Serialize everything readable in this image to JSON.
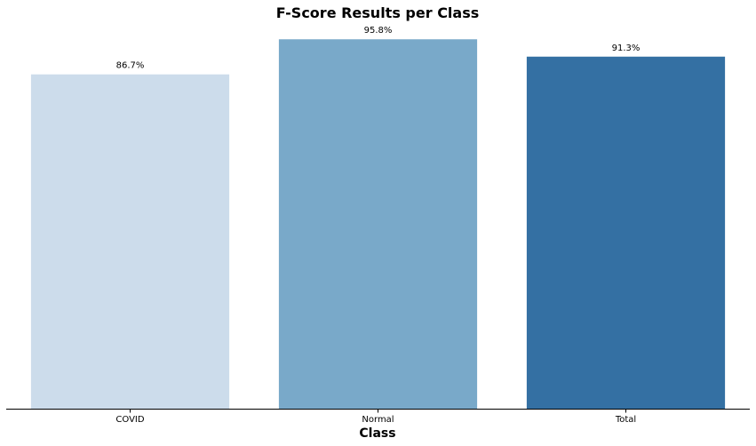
{
  "chart_data": {
    "type": "bar",
    "title": "F-Score Results per Class",
    "xlabel": "Class",
    "ylabel": "",
    "categories": [
      "COVID",
      "Normal",
      "Total"
    ],
    "values": [
      86.7,
      95.8,
      91.3
    ],
    "data_labels": [
      "86.7%",
      "95.8%",
      "91.3%"
    ],
    "colors": [
      "#ccdceb",
      "#79a9c9",
      "#3470a3"
    ],
    "ylim": [
      0,
      100
    ],
    "grid": false,
    "legend": "none",
    "y_axis_visible": false
  }
}
